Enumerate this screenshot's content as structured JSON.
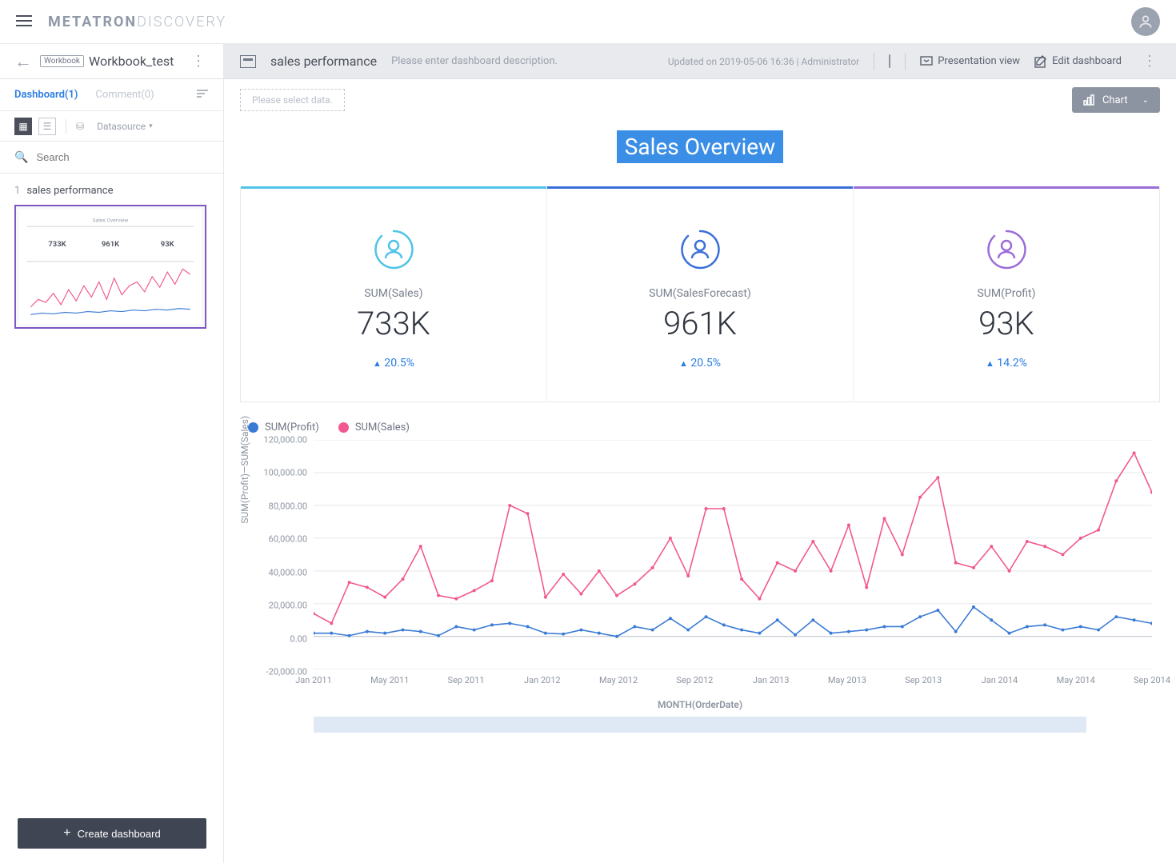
{
  "app": {
    "logo1": "METATRON",
    "logo2": "DISCOVERY"
  },
  "workbook": {
    "badge": "Workbook",
    "title": "Workbook_test"
  },
  "sidebar": {
    "tab_dashboard": "Dashboard(1)",
    "tab_comment": "Comment(0)",
    "datasource_label": "Datasource",
    "search_placeholder": "Search",
    "item_index": "1",
    "item_name": "sales performance",
    "create_btn": "Create dashboard"
  },
  "header": {
    "dash_name": "sales performance",
    "desc_placeholder": "Please enter dashboard description.",
    "updated": "Updated on 2019-05-06 16:36 | Administrator",
    "presentation": "Presentation view",
    "edit": "Edit dashboard"
  },
  "toolbar": {
    "select_data": "Please select data.",
    "chart_btn": "Chart"
  },
  "overview": {
    "title": "Sales Overview",
    "kpis": [
      {
        "label": "SUM(Sales)",
        "value": "733K",
        "delta": "20.5%",
        "bar_color": "#4fc3e8",
        "icon_color": "#4fc3e8"
      },
      {
        "label": "SUM(SalesForecast)",
        "value": "961K",
        "delta": "20.5%",
        "bar_color": "#3a6fd8",
        "icon_color": "#3a6fd8"
      },
      {
        "label": "SUM(Profit)",
        "value": "93K",
        "delta": "14.2%",
        "bar_color": "#9b6dd7",
        "icon_color": "#9b6dd7"
      }
    ]
  },
  "chart": {
    "legend": [
      {
        "label": "SUM(Profit)",
        "color": "#3a7bd5"
      },
      {
        "label": "SUM(Sales)",
        "color": "#f1588f"
      }
    ],
    "y_label": "SUM(Profit)―SUM(Sales)",
    "x_label": "MONTH(OrderDate)",
    "ylim": [
      -20000,
      120000
    ],
    "y_ticks": [
      -20000,
      0,
      20000,
      40000,
      60000,
      80000,
      100000,
      120000
    ],
    "y_tick_labels": [
      "-20,000.00",
      "0.00",
      "20,000.00",
      "40,000.00",
      "60,000.00",
      "80,000.00",
      "100,000.00",
      "120,000.00"
    ],
    "x_tick_labels": [
      "Jan 2011",
      "May 2011",
      "Sep 2011",
      "Jan 2012",
      "May 2012",
      "Sep 2012",
      "Jan 2013",
      "May 2013",
      "Sep 2013",
      "Jan 2014",
      "May 2014",
      "Sep 2014"
    ],
    "n_points": 48,
    "series": {
      "sales": [
        14000,
        8000,
        33000,
        30000,
        24000,
        35000,
        55000,
        25000,
        23000,
        28000,
        34000,
        80000,
        75000,
        24000,
        38000,
        26000,
        40000,
        25000,
        32000,
        42000,
        60000,
        37000,
        78000,
        78000,
        35000,
        23000,
        45000,
        40000,
        58000,
        40000,
        68000,
        30000,
        72000,
        50000,
        85000,
        97000,
        45000,
        42000,
        55000,
        40000,
        58000,
        55000,
        50000,
        60000,
        65000,
        95000,
        112000,
        88000
      ],
      "profit": [
        2000,
        2000,
        500,
        3000,
        2000,
        4000,
        3000,
        500,
        6000,
        4000,
        7000,
        8000,
        6000,
        2000,
        1500,
        4000,
        2000,
        0,
        6000,
        4000,
        11000,
        4000,
        12000,
        7000,
        4000,
        2000,
        10000,
        1000,
        10000,
        2000,
        3000,
        4000,
        6000,
        6000,
        12000,
        16000,
        3000,
        18000,
        10000,
        2000,
        6000,
        7000,
        4000,
        6000,
        4000,
        12000,
        10000,
        8000
      ]
    },
    "colors": {
      "sales": "#f1588f",
      "profit": "#3a7bd5",
      "grid": "#e7e8ec",
      "baseline": "#b8bec9"
    }
  }
}
